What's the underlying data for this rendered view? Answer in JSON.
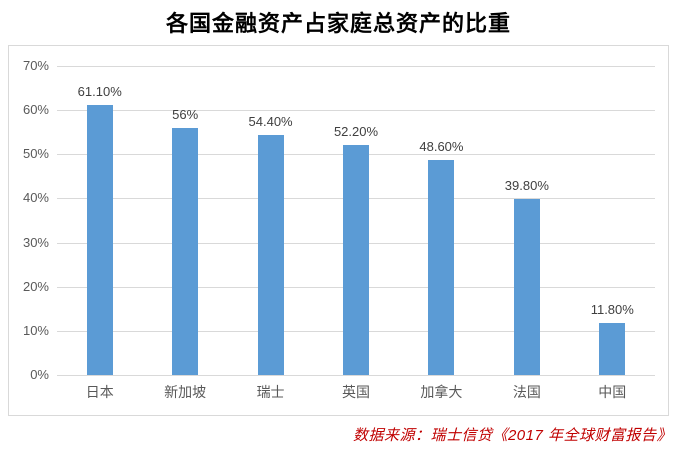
{
  "title": "各国金融资产占家庭总资产的比重",
  "source": "数据来源：瑞士信贷《2017 年全球财富报告》",
  "colors": {
    "bar": "#5b9bd5",
    "grid": "#d9d9d9",
    "border": "#d9d9d9",
    "axis_text": "#595959",
    "data_label_text": "#404040",
    "title_text": "#000000",
    "source_text": "#c00000",
    "background": "#ffffff"
  },
  "chart_data": {
    "type": "bar",
    "title": "各国金融资产占家庭总资产的比重",
    "categories": [
      "日本",
      "新加坡",
      "瑞士",
      "英国",
      "加拿大",
      "法国",
      "中国"
    ],
    "values": [
      61.1,
      56,
      54.4,
      52.2,
      48.6,
      39.8,
      11.8
    ],
    "data_labels": [
      "61.10%",
      "56%",
      "54.40%",
      "52.20%",
      "48.60%",
      "39.80%",
      "11.80%"
    ],
    "xlabel": "",
    "ylabel": "",
    "ylim": [
      0,
      70
    ],
    "ytick_step": 10,
    "ytick_labels": [
      "0%",
      "10%",
      "20%",
      "30%",
      "40%",
      "50%",
      "60%",
      "70%"
    ],
    "grid": true,
    "legend": false,
    "source_note": "数据来源：瑞士信贷《2017 年全球财富报告》"
  }
}
